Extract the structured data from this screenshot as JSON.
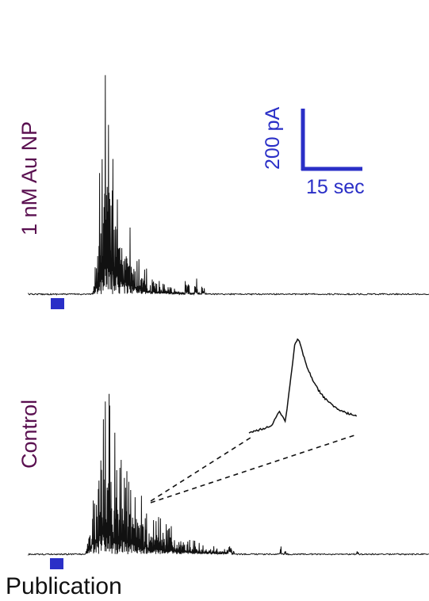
{
  "chart_data": [
    {
      "type": "line",
      "panel": "top",
      "ylabel": "1 nM Au NP",
      "stimulus_marker_color": "#2a2fc7",
      "trace_color": "#111111"
    },
    {
      "type": "line",
      "panel": "bottom",
      "ylabel": "Control",
      "stimulus_marker_color": "#2a2fc7",
      "trace_color": "#111111",
      "inset": "expanded view of a single current spike"
    }
  ],
  "scale_bar": {
    "y_text": "200 pA",
    "x_text": "15 sec",
    "color": "#2a2fc7"
  },
  "caption": "Publication",
  "colors": {
    "label": "#5a1050",
    "scale": "#2a2fc7"
  }
}
